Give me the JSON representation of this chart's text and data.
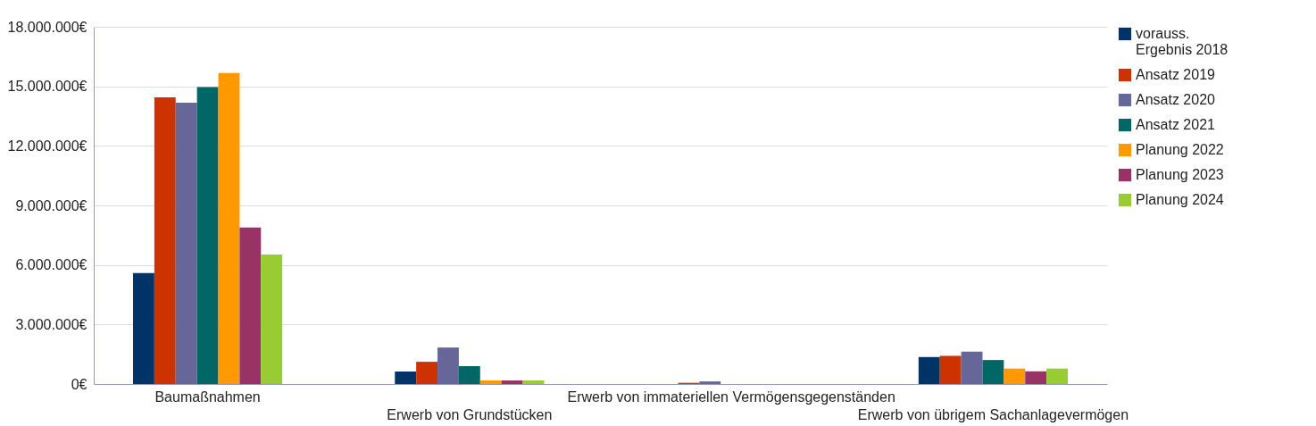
{
  "chart_data": {
    "type": "bar",
    "categories": [
      "Baumaßnahmen",
      "Erwerb von Grundstücken",
      "Erwerb von immateriellen Vermögensgegenständen",
      "Erwerb von übrigem Sachanlagevermögen"
    ],
    "series": [
      {
        "name": "vorauss. Ergebnis 2018",
        "color": "#003366",
        "values": [
          5590000,
          630000,
          0,
          1360000
        ]
      },
      {
        "name": "Ansatz 2019",
        "color": "#cc3300",
        "values": [
          14450000,
          1120000,
          60000,
          1420000
        ]
      },
      {
        "name": "Ansatz 2020",
        "color": "#666699",
        "values": [
          14180000,
          1840000,
          130000,
          1630000
        ]
      },
      {
        "name": "Ansatz 2021",
        "color": "#006666",
        "values": [
          14960000,
          900000,
          0,
          1210000
        ]
      },
      {
        "name": "Planung 2022",
        "color": "#ff9900",
        "values": [
          15670000,
          180000,
          0,
          780000
        ]
      },
      {
        "name": "Planung 2023",
        "color": "#993366",
        "values": [
          7890000,
          180000,
          0,
          640000
        ]
      },
      {
        "name": "Planung 2024",
        "color": "#99cc33",
        "values": [
          6520000,
          180000,
          0,
          780000
        ]
      }
    ],
    "ylim": [
      0,
      18000000
    ],
    "yticks": [
      {
        "value": 0,
        "label": "0€"
      },
      {
        "value": 3000000,
        "label": "3.000.000€"
      },
      {
        "value": 6000000,
        "label": "6.000.000€"
      },
      {
        "value": 9000000,
        "label": "9.000.000€"
      },
      {
        "value": 12000000,
        "label": "12.000.000€"
      },
      {
        "value": 15000000,
        "label": "15.000.000€"
      },
      {
        "value": 18000000,
        "label": "18.000.000€"
      }
    ],
    "grid": "y",
    "legend": "right"
  }
}
